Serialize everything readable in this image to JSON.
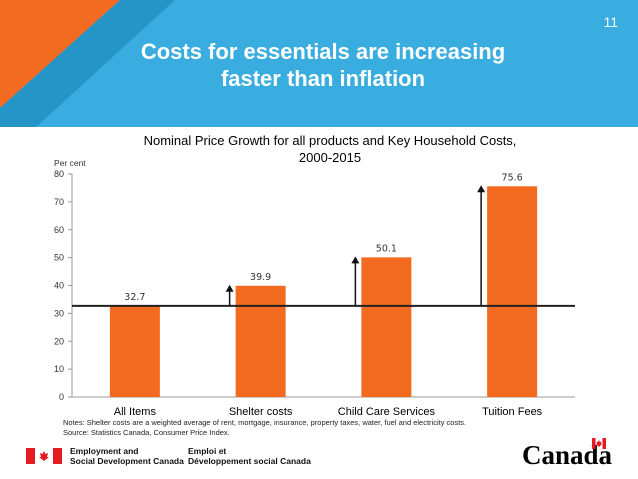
{
  "slide": {
    "number": "11",
    "title_line1": "Costs for essentials are increasing",
    "title_line2": "faster than inflation"
  },
  "chart_data": {
    "type": "bar",
    "title_line1": "Nominal Price Growth for all products and Key Household Costs,",
    "title_line2": "2000-2015",
    "ylabel": "Per cent",
    "xlabel": "",
    "categories": [
      "All Items",
      "Shelter costs",
      "Child Care Services",
      "Tuition Fees"
    ],
    "values": [
      32.7,
      39.9,
      50.1,
      75.6
    ],
    "value_labels": [
      "32.7",
      "39.9",
      "50.1",
      "75.6"
    ],
    "ylim": [
      0,
      80
    ],
    "yticks": [
      "0",
      "10",
      "20",
      "30",
      "40",
      "50",
      "60",
      "70",
      "80"
    ],
    "reference_line": 32.7,
    "bar_color": "#f26b21",
    "grid": false
  },
  "notes": {
    "line1": "Notes: Shelter costs are a weighted average of rent, mortgage, insurance, property taxes, water, fuel and electricity costs.",
    "line2": "Source: Statistics Canada, Consumer Price Index."
  },
  "footer": {
    "dept_en_line1": "Employment and",
    "dept_en_line2": "Social Development Canada",
    "dept_fr_line1": "Emploi et",
    "dept_fr_line2": "Développement social Canada",
    "wordmark": "Canada"
  },
  "colors": {
    "header_blue": "#3aade0",
    "accent_orange": "#f26b21"
  }
}
